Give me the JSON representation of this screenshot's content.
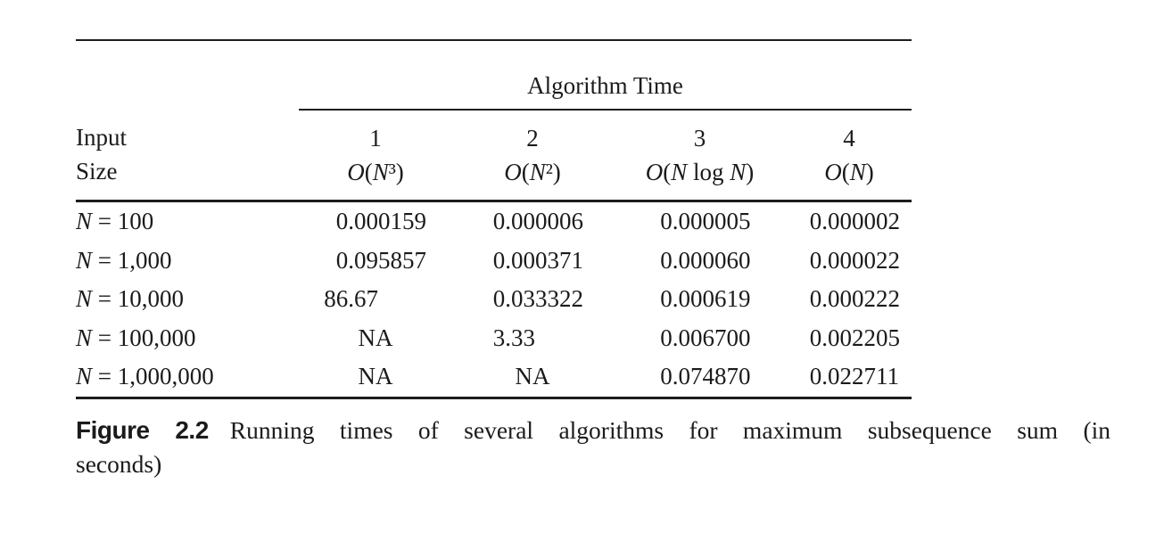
{
  "figure_table": {
    "group_header": "Algorithm Time",
    "stub": {
      "line1": "Input",
      "line2": "Size"
    },
    "columns": [
      {
        "number": "1",
        "complexity": "O(N³)"
      },
      {
        "number": "2",
        "complexity": "O(N²)"
      },
      {
        "number": "3",
        "complexity": "O(N log N)"
      },
      {
        "number": "4",
        "complexity": "O(N)"
      }
    ],
    "rows": [
      {
        "label": "N = 100",
        "values": [
          "0.000159",
          "0.000006",
          "0.000005",
          "0.000002"
        ]
      },
      {
        "label": "N = 1,000",
        "values": [
          "0.095857",
          "0.000371",
          "0.000060",
          "0.000022"
        ]
      },
      {
        "label": "N = 10,000",
        "values": [
          "86.67",
          "0.033322",
          "0.000619",
          "0.000222"
        ]
      },
      {
        "label": "N = 100,000",
        "values": [
          "NA",
          "3.33",
          "0.006700",
          "0.002205"
        ]
      },
      {
        "label": "N = 1,000,000",
        "values": [
          "NA",
          "NA",
          "0.074870",
          "0.022711"
        ]
      }
    ]
  },
  "caption": {
    "label": "Figure 2.2",
    "lines": [
      "Running times of several algorithms for maximum subsequence sum (in",
      "seconds)"
    ],
    "full_text": "Figure 2.2 Running times of several algorithms for maximum subsequence sum (in seconds)"
  },
  "chart_data": {
    "type": "table",
    "title": "Algorithm Time",
    "columns": [
      "Input Size",
      "1: O(N³)",
      "2: O(N²)",
      "3: O(N log N)",
      "4: O(N)"
    ],
    "rows": [
      [
        "N = 100",
        "0.000159",
        "0.000006",
        "0.000005",
        "0.000002"
      ],
      [
        "N = 1,000",
        "0.095857",
        "0.000371",
        "0.000060",
        "0.000022"
      ],
      [
        "N = 10,000",
        "86.67",
        "0.033322",
        "0.000619",
        "0.000222"
      ],
      [
        "N = 100,000",
        "NA",
        "3.33",
        "0.006700",
        "0.002205"
      ],
      [
        "N = 1,000,000",
        "NA",
        "NA",
        "0.074870",
        "0.022711"
      ]
    ]
  },
  "colors": {
    "text": "#1b1b1b",
    "rule": "#1d1d1d",
    "background": "#ffffff"
  }
}
